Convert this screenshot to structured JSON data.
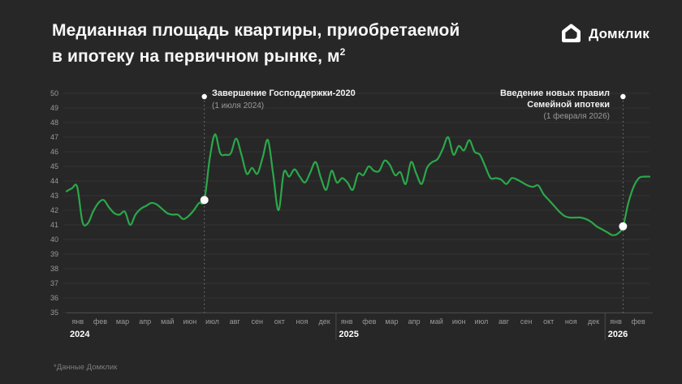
{
  "title": {
    "line1": "Медианная площадь квартиры, приобретаемой",
    "line2": "в ипотеку на первичном рынке, м",
    "line2_sup": "2"
  },
  "logo": {
    "text": "Домклик"
  },
  "footnote": "*Данные Домклик",
  "annotations": [
    {
      "title": "Завершение Господдержки-2020",
      "subtitle": "(1 июля 2024)"
    },
    {
      "title_line1": "Введение новых правил",
      "title_line2": "Семейной ипотеки",
      "subtitle": "(1 февраля 2026)"
    }
  ],
  "colors": {
    "background": "#272727",
    "line": "#2aa84a",
    "grid": "#333333",
    "axis_line": "#4a4a4a",
    "axis_text": "#9a9a9a",
    "text": "#ffffff",
    "marker": "#ffffff"
  },
  "chart_data": {
    "type": "line",
    "title": "Медианная площадь квартиры, приобретаемой в ипотеку на первичном рынке, м²",
    "ylabel": "м²",
    "ylim": [
      35,
      50
    ],
    "ytick_step": 1,
    "grid": true,
    "frequency": "weekly",
    "months": [
      "янв",
      "фев",
      "мар",
      "апр",
      "май",
      "июн",
      "июл",
      "авг",
      "сен",
      "окт",
      "ноя",
      "дек",
      "янв",
      "фев",
      "мар",
      "апр",
      "май",
      "июн",
      "июл",
      "авг",
      "сен",
      "окт",
      "ноя",
      "дек",
      "янв",
      "фев"
    ],
    "years": [
      {
        "label": "2024",
        "start_month": 0
      },
      {
        "label": "2025",
        "start_month": 12
      },
      {
        "label": "2026",
        "start_month": 24
      }
    ],
    "series": [
      {
        "name": "Медианная площадь, м²",
        "values": [
          43.3,
          43.5,
          43.6,
          41.2,
          41.1,
          41.9,
          42.5,
          42.7,
          42.2,
          41.8,
          41.7,
          41.9,
          41.0,
          41.7,
          42.1,
          42.3,
          42.5,
          42.4,
          42.1,
          41.8,
          41.7,
          41.7,
          41.4,
          41.6,
          42.0,
          42.5,
          42.7,
          45.5,
          47.2,
          45.9,
          45.8,
          45.9,
          46.9,
          45.8,
          44.5,
          44.9,
          44.5,
          45.6,
          46.8,
          44.4,
          42.0,
          44.6,
          44.3,
          44.8,
          44.3,
          43.9,
          44.6,
          45.3,
          44.2,
          43.4,
          44.7,
          43.9,
          44.2,
          43.9,
          43.4,
          44.5,
          44.4,
          45.0,
          44.7,
          44.7,
          45.4,
          45.1,
          44.4,
          44.6,
          43.8,
          45.3,
          44.5,
          43.8,
          44.9,
          45.3,
          45.5,
          46.2,
          47.0,
          45.8,
          46.4,
          46.1,
          46.8,
          46.0,
          45.8,
          45.0,
          44.2,
          44.2,
          44.1,
          43.8,
          44.2,
          44.1,
          43.9,
          43.7,
          43.6,
          43.7,
          43.1,
          42.7,
          42.3,
          41.9,
          41.6,
          41.5,
          41.5,
          41.5,
          41.4,
          41.2,
          40.9,
          40.7,
          40.5,
          40.3,
          40.4,
          40.9,
          42.5,
          43.6,
          44.2,
          44.3,
          44.3
        ]
      }
    ],
    "markers": [
      {
        "label": "Завершение Господдержки-2020",
        "date": "1 июля 2024",
        "index": 26,
        "value": 42.7
      },
      {
        "label": "Введение новых правил Семейной ипотеки",
        "date": "1 февраля 2026",
        "index": 105,
        "value": 40.9
      }
    ]
  }
}
